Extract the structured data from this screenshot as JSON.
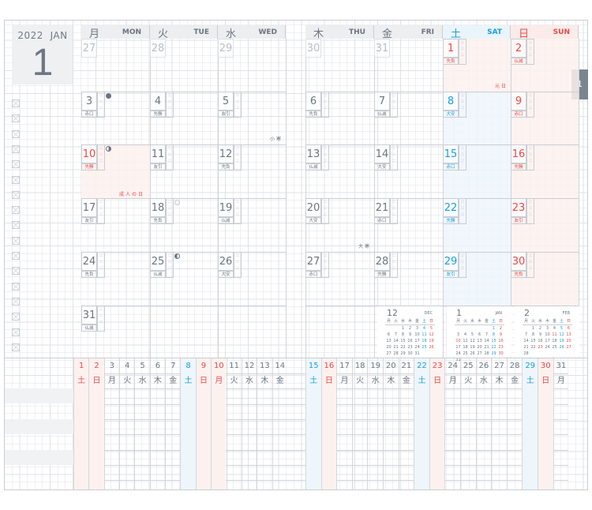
{
  "header": {
    "year": "2022",
    "month_en": "JAN",
    "month_num": "1",
    "tab": "1"
  },
  "weekdays": [
    {
      "jp": "月",
      "en": "MON",
      "type": "wd"
    },
    {
      "jp": "火",
      "en": "TUE",
      "type": "wd"
    },
    {
      "jp": "水",
      "en": "WED",
      "type": "wd"
    },
    {
      "jp": "木",
      "en": "THU",
      "type": "wd"
    },
    {
      "jp": "金",
      "en": "FRI",
      "type": "wd"
    },
    {
      "jp": "土",
      "en": "SAT",
      "type": "sat"
    },
    {
      "jp": "日",
      "en": "SUN",
      "type": "sun"
    }
  ],
  "prev_days": [
    "27",
    "28",
    "29",
    "30",
    "31"
  ],
  "days": [
    {
      "d": "1",
      "rk": "先負",
      "type": "hol",
      "moon": "",
      "note": "元日"
    },
    {
      "d": "2",
      "rk": "仏滅",
      "type": "sun",
      "moon": "",
      "note": ""
    },
    {
      "d": "3",
      "rk": "赤口",
      "type": "wd",
      "moon": "new-moon",
      "note": ""
    },
    {
      "d": "4",
      "rk": "先勝",
      "type": "wd",
      "moon": "",
      "note": ""
    },
    {
      "d": "5",
      "rk": "友引",
      "type": "wd",
      "moon": "",
      "note": "小寒"
    },
    {
      "d": "6",
      "rk": "先負",
      "type": "wd",
      "moon": "",
      "note": ""
    },
    {
      "d": "7",
      "rk": "仏滅",
      "type": "wd",
      "moon": "",
      "note": ""
    },
    {
      "d": "8",
      "rk": "大安",
      "type": "sat",
      "moon": "",
      "note": ""
    },
    {
      "d": "9",
      "rk": "赤口",
      "type": "sun",
      "moon": "",
      "note": ""
    },
    {
      "d": "10",
      "rk": "先勝",
      "type": "hol",
      "moon": "first-quarter",
      "note": "成人の日"
    },
    {
      "d": "11",
      "rk": "友引",
      "type": "wd",
      "moon": "",
      "note": ""
    },
    {
      "d": "12",
      "rk": "先負",
      "type": "wd",
      "moon": "",
      "note": ""
    },
    {
      "d": "13",
      "rk": "仏滅",
      "type": "wd",
      "moon": "",
      "note": ""
    },
    {
      "d": "14",
      "rk": "大安",
      "type": "wd",
      "moon": "",
      "note": ""
    },
    {
      "d": "15",
      "rk": "赤口",
      "type": "sat",
      "moon": "",
      "note": ""
    },
    {
      "d": "16",
      "rk": "先勝",
      "type": "sun",
      "moon": "",
      "note": ""
    },
    {
      "d": "17",
      "rk": "友引",
      "type": "wd",
      "moon": "",
      "note": ""
    },
    {
      "d": "18",
      "rk": "先負",
      "type": "wd",
      "moon": "full-moon",
      "note": ""
    },
    {
      "d": "19",
      "rk": "仏滅",
      "type": "wd",
      "moon": "",
      "note": ""
    },
    {
      "d": "20",
      "rk": "大安",
      "type": "wd",
      "moon": "",
      "note": "大寒"
    },
    {
      "d": "21",
      "rk": "赤口",
      "type": "wd",
      "moon": "",
      "note": ""
    },
    {
      "d": "22",
      "rk": "先勝",
      "type": "sat",
      "moon": "",
      "note": ""
    },
    {
      "d": "23",
      "rk": "友引",
      "type": "sun",
      "moon": "",
      "note": ""
    },
    {
      "d": "24",
      "rk": "先負",
      "type": "wd",
      "moon": "",
      "note": ""
    },
    {
      "d": "25",
      "rk": "仏滅",
      "type": "wd",
      "moon": "last-quarter",
      "note": ""
    },
    {
      "d": "26",
      "rk": "大安",
      "type": "wd",
      "moon": "",
      "note": ""
    },
    {
      "d": "27",
      "rk": "赤口",
      "type": "wd",
      "moon": "",
      "note": ""
    },
    {
      "d": "28",
      "rk": "先勝",
      "type": "wd",
      "moon": "",
      "note": ""
    },
    {
      "d": "29",
      "rk": "友引",
      "type": "sat",
      "moon": "",
      "note": ""
    },
    {
      "d": "30",
      "rk": "先負",
      "type": "sun",
      "moon": "",
      "note": ""
    },
    {
      "d": "31",
      "rk": "仏滅",
      "type": "wd",
      "moon": "",
      "note": ""
    }
  ],
  "timeline_weekdays": [
    "土",
    "日",
    "月",
    "火",
    "水",
    "木",
    "金",
    "土",
    "日",
    "月",
    "火",
    "水",
    "木",
    "金",
    "土",
    "日",
    "月",
    "火",
    "水",
    "木",
    "金",
    "土",
    "日",
    "月",
    "火",
    "水",
    "木",
    "金",
    "土",
    "日",
    "月"
  ],
  "mini_calendars": [
    {
      "num": "12",
      "en": "DEC",
      "offset": 2,
      "days": 31,
      "red": [],
      "heads": [
        "月",
        "火",
        "水",
        "木",
        "金",
        "土",
        "日"
      ]
    },
    {
      "num": "1",
      "en": "JAN",
      "offset": 5,
      "days": 31,
      "red": [
        10
      ],
      "heads": [
        "月",
        "火",
        "水",
        "木",
        "金",
        "土",
        "日"
      ]
    },
    {
      "num": "2",
      "en": "FEB",
      "offset": 1,
      "days": 28,
      "red": [
        11,
        23
      ],
      "heads": [
        "月",
        "火",
        "水",
        "木",
        "金",
        "土",
        "日"
      ]
    }
  ],
  "colors": {
    "red": "#e84a4a",
    "blue": "#1aa0dc",
    "text": "#6b7580",
    "tab": "#7a8590",
    "pink_bg": "#fdf1ef",
    "blue_bg": "#eef6fc"
  }
}
